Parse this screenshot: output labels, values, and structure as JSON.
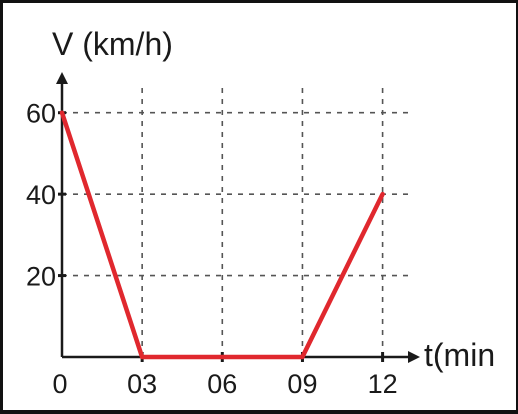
{
  "chart_data": {
    "type": "line",
    "ylabel": "V (km/h)",
    "xlabel": "t(min",
    "x_tick_labels": [
      "0",
      "03",
      "06",
      "09",
      "12"
    ],
    "y_tick_labels": [
      "20",
      "40",
      "60"
    ],
    "x_ticks": [
      0,
      3,
      6,
      9,
      12
    ],
    "y_ticks": [
      20,
      40,
      60
    ],
    "xlim": [
      0,
      13.4
    ],
    "ylim": [
      0,
      70
    ],
    "grid": true,
    "series": [
      {
        "x": [
          0,
          3,
          9,
          12
        ],
        "y": [
          60,
          0,
          0,
          40
        ],
        "color": "#e0282e"
      }
    ],
    "colors": {
      "axis": "#1a1a1a",
      "grid": "#555555",
      "line": "#e0282e"
    }
  }
}
